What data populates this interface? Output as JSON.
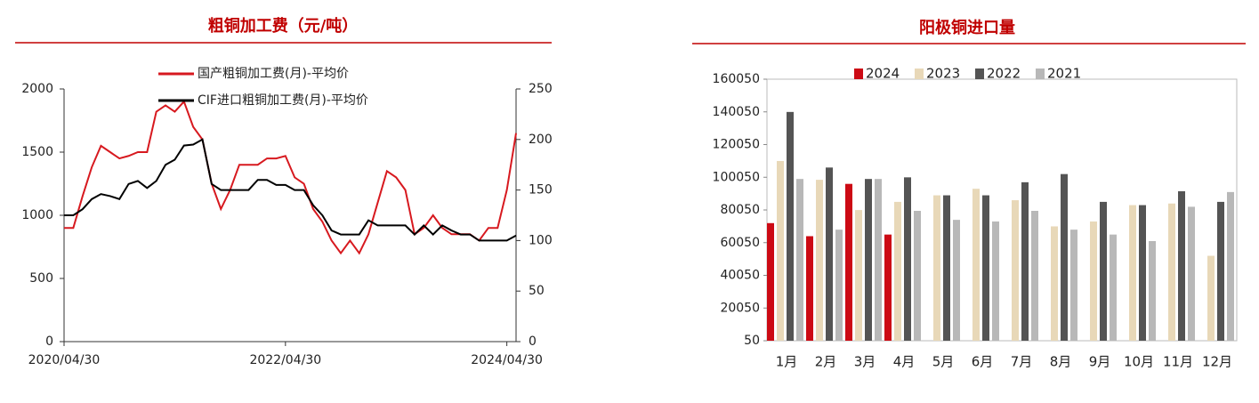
{
  "chart_data": [
    {
      "type": "line",
      "title": "粗铜加工费（元/吨）",
      "categories": [
        "2020/04/30",
        null,
        null,
        null,
        null,
        null,
        null,
        null,
        null,
        null,
        null,
        null,
        null,
        null,
        null,
        null,
        null,
        null,
        null,
        null,
        null,
        null,
        null,
        null,
        "2022/04/30",
        null,
        null,
        null,
        null,
        null,
        null,
        null,
        null,
        null,
        null,
        null,
        null,
        null,
        null,
        null,
        null,
        null,
        null,
        null,
        null,
        null,
        null,
        null,
        "2024/04/30",
        null
      ],
      "ylim": [
        0,
        2000
      ],
      "yticks": [
        0,
        500,
        1000,
        1500,
        2000
      ],
      "y2lim": [
        0,
        250
      ],
      "y2ticks": [
        0,
        50,
        100,
        150,
        200,
        250
      ],
      "series": [
        {
          "name": "国产粗铜加工费(月)-平均价",
          "color": "#d7191f",
          "values": [
            900,
            900,
            1150,
            1380,
            1550,
            1500,
            1450,
            1470,
            1500,
            1500,
            1820,
            1870,
            1820,
            1900,
            1700,
            1600,
            1250,
            1050,
            1200,
            1400,
            1400,
            1400,
            1450,
            1450,
            1470,
            1300,
            1250,
            1050,
            950,
            800,
            700,
            800,
            700,
            850,
            1100,
            1350,
            1300,
            1200,
            850,
            900,
            1000,
            900,
            850,
            850,
            850,
            800,
            900,
            900,
            1200,
            1650
          ]
        },
        {
          "name": "CIF进口粗铜加工费(月)-平均价",
          "color": "#000000",
          "axis": "y2",
          "values": [
            125,
            125,
            131,
            141,
            146,
            144,
            141,
            156,
            159,
            152,
            159,
            175,
            180,
            194,
            195,
            200,
            156,
            150,
            150,
            150,
            150,
            160,
            160,
            155,
            155,
            150,
            150,
            135,
            125,
            110,
            106,
            106,
            106,
            120,
            115,
            115,
            115,
            115,
            106,
            115,
            106,
            115,
            110,
            106,
            106,
            100,
            100,
            100,
            100,
            105
          ]
        }
      ]
    },
    {
      "type": "bar",
      "title": "阳极铜进口量",
      "categories": [
        "1月",
        "2月",
        "3月",
        "4月",
        "5月",
        "6月",
        "7月",
        "8月",
        "9月",
        "10月",
        "11月",
        "12月"
      ],
      "ylim": [
        50,
        160050
      ],
      "yticks": [
        50,
        20050,
        40050,
        60050,
        80050,
        100050,
        120050,
        140050,
        160050
      ],
      "series": [
        {
          "name": "2024",
          "color": "#cc0a14",
          "values": [
            72000,
            64000,
            96000,
            65000,
            null,
            null,
            null,
            null,
            null,
            null,
            null,
            null
          ]
        },
        {
          "name": "2023",
          "color": "#e8d8b8",
          "values": [
            110000,
            98500,
            80000,
            85000,
            89000,
            93000,
            86000,
            70000,
            73000,
            83000,
            84000,
            52000
          ]
        },
        {
          "name": "2022",
          "color": "#545454",
          "values": [
            140000,
            106000,
            99000,
            100000,
            89000,
            89000,
            97000,
            102000,
            85000,
            83000,
            91500,
            85000
          ]
        },
        {
          "name": "2021",
          "color": "#b8b8b8",
          "values": [
            99000,
            68000,
            99000,
            79500,
            74000,
            73000,
            79500,
            68000,
            65000,
            61000,
            82000,
            91000
          ]
        }
      ]
    }
  ]
}
